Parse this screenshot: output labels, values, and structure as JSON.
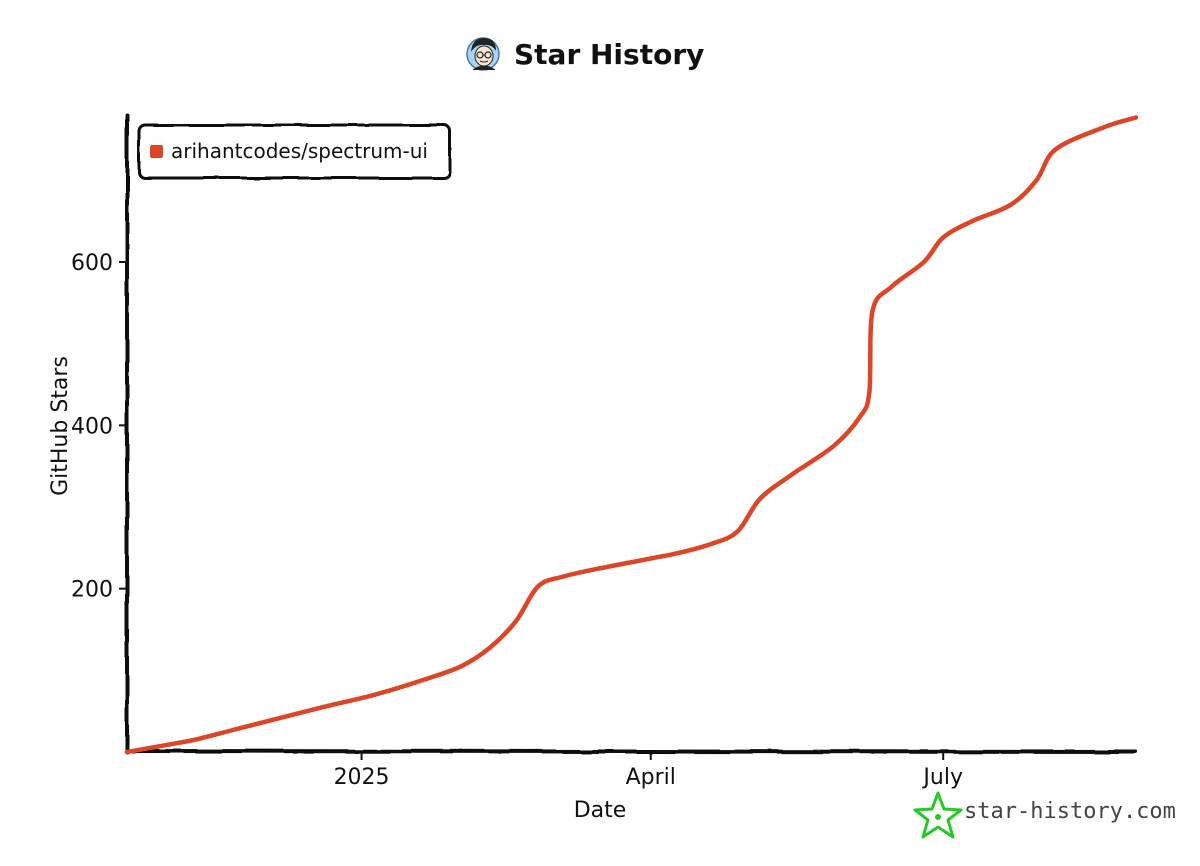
{
  "chart_data": {
    "type": "line",
    "title": "Star History",
    "xlabel": "Date",
    "ylabel": "GitHub Stars",
    "x_ticks": [
      {
        "label": "2025",
        "date": "2025-01-01"
      },
      {
        "label": "April",
        "date": "2025-04-01"
      },
      {
        "label": "July",
        "date": "2025-07-01"
      }
    ],
    "y_ticks": [
      200,
      400,
      600
    ],
    "xlim": [
      "2024-10-20",
      "2025-08-30"
    ],
    "ylim": [
      0,
      780
    ],
    "grid": false,
    "legend": "top-left",
    "series": [
      {
        "name": "arihantcodes/spectrum-ui",
        "color": "#dd4528",
        "points": [
          [
            "2024-10-20",
            0
          ],
          [
            "2024-10-30",
            7
          ],
          [
            "2024-11-10",
            15
          ],
          [
            "2024-11-22",
            27
          ],
          [
            "2024-12-05",
            40
          ],
          [
            "2024-12-20",
            55
          ],
          [
            "2025-01-05",
            70
          ],
          [
            "2025-01-20",
            88
          ],
          [
            "2025-02-01",
            105
          ],
          [
            "2025-02-10",
            128
          ],
          [
            "2025-02-18",
            160
          ],
          [
            "2025-02-25",
            203
          ],
          [
            "2025-03-05",
            215
          ],
          [
            "2025-03-15",
            224
          ],
          [
            "2025-04-01",
            237
          ],
          [
            "2025-04-10",
            244
          ],
          [
            "2025-04-20",
            255
          ],
          [
            "2025-04-28",
            270
          ],
          [
            "2025-05-05",
            310
          ],
          [
            "2025-05-15",
            340
          ],
          [
            "2025-05-28",
            375
          ],
          [
            "2025-06-05",
            410
          ],
          [
            "2025-06-08",
            440
          ],
          [
            "2025-06-09",
            540
          ],
          [
            "2025-06-15",
            570
          ],
          [
            "2025-06-25",
            600
          ],
          [
            "2025-07-01",
            630
          ],
          [
            "2025-07-10",
            650
          ],
          [
            "2025-07-22",
            670
          ],
          [
            "2025-07-30",
            700
          ],
          [
            "2025-08-05",
            738
          ],
          [
            "2025-08-20",
            765
          ],
          [
            "2025-08-30",
            777
          ]
        ]
      }
    ]
  },
  "watermark": {
    "text": "star-history.com",
    "icon": "green-star-icon",
    "icon_color": "#25c926"
  },
  "avatar": {
    "icon": "person-with-glasses-avatar",
    "bg_color": "#a9d3f1"
  }
}
